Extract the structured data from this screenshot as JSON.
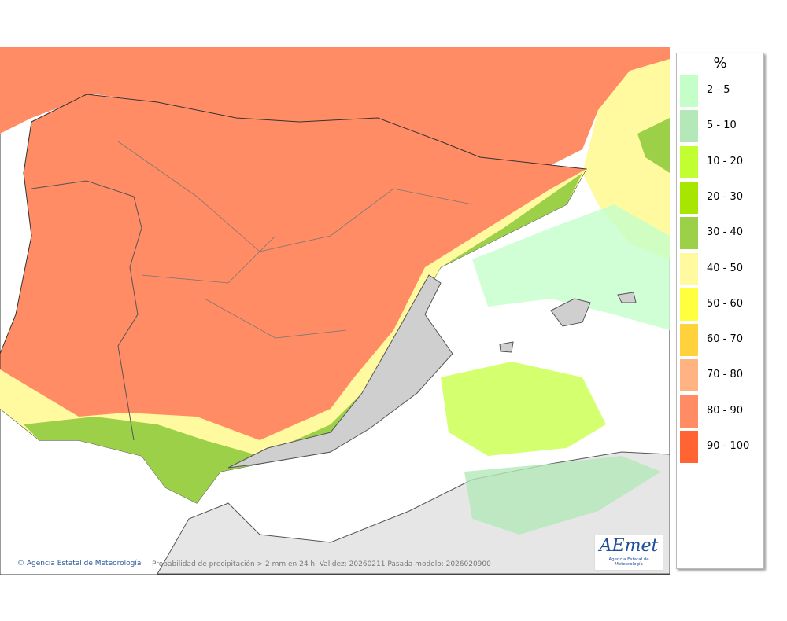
{
  "map": {
    "credit": "Agencia Estatal de Meteorología",
    "caption": "Probabilidad de precipitación > 2 mm en 24 h. Validez: 20260211 Pasada modelo: 2026020900"
  },
  "logo": {
    "text": "AEmet",
    "subtitle": "Agencia Estatal de Meteorología"
  },
  "legend": {
    "title": "%",
    "items": [
      {
        "label": "2 - 5",
        "color": "#c4ffca"
      },
      {
        "label": "5 - 10",
        "color": "#b4e8b8"
      },
      {
        "label": "10 - 20",
        "color": "#c2ff32"
      },
      {
        "label": "20 - 30",
        "color": "#a6e600"
      },
      {
        "label": "30 - 40",
        "color": "#9cd048"
      },
      {
        "label": "40 - 50",
        "color": "#fffaa0"
      },
      {
        "label": "50 - 60",
        "color": "#ffff40"
      },
      {
        "label": "60 - 70",
        "color": "#ffd23c"
      },
      {
        "label": "70 - 80",
        "color": "#ffb282"
      },
      {
        "label": "80 - 90",
        "color": "#ff8c64"
      },
      {
        "label": "90 - 100",
        "color": "#ff6432"
      }
    ]
  }
}
